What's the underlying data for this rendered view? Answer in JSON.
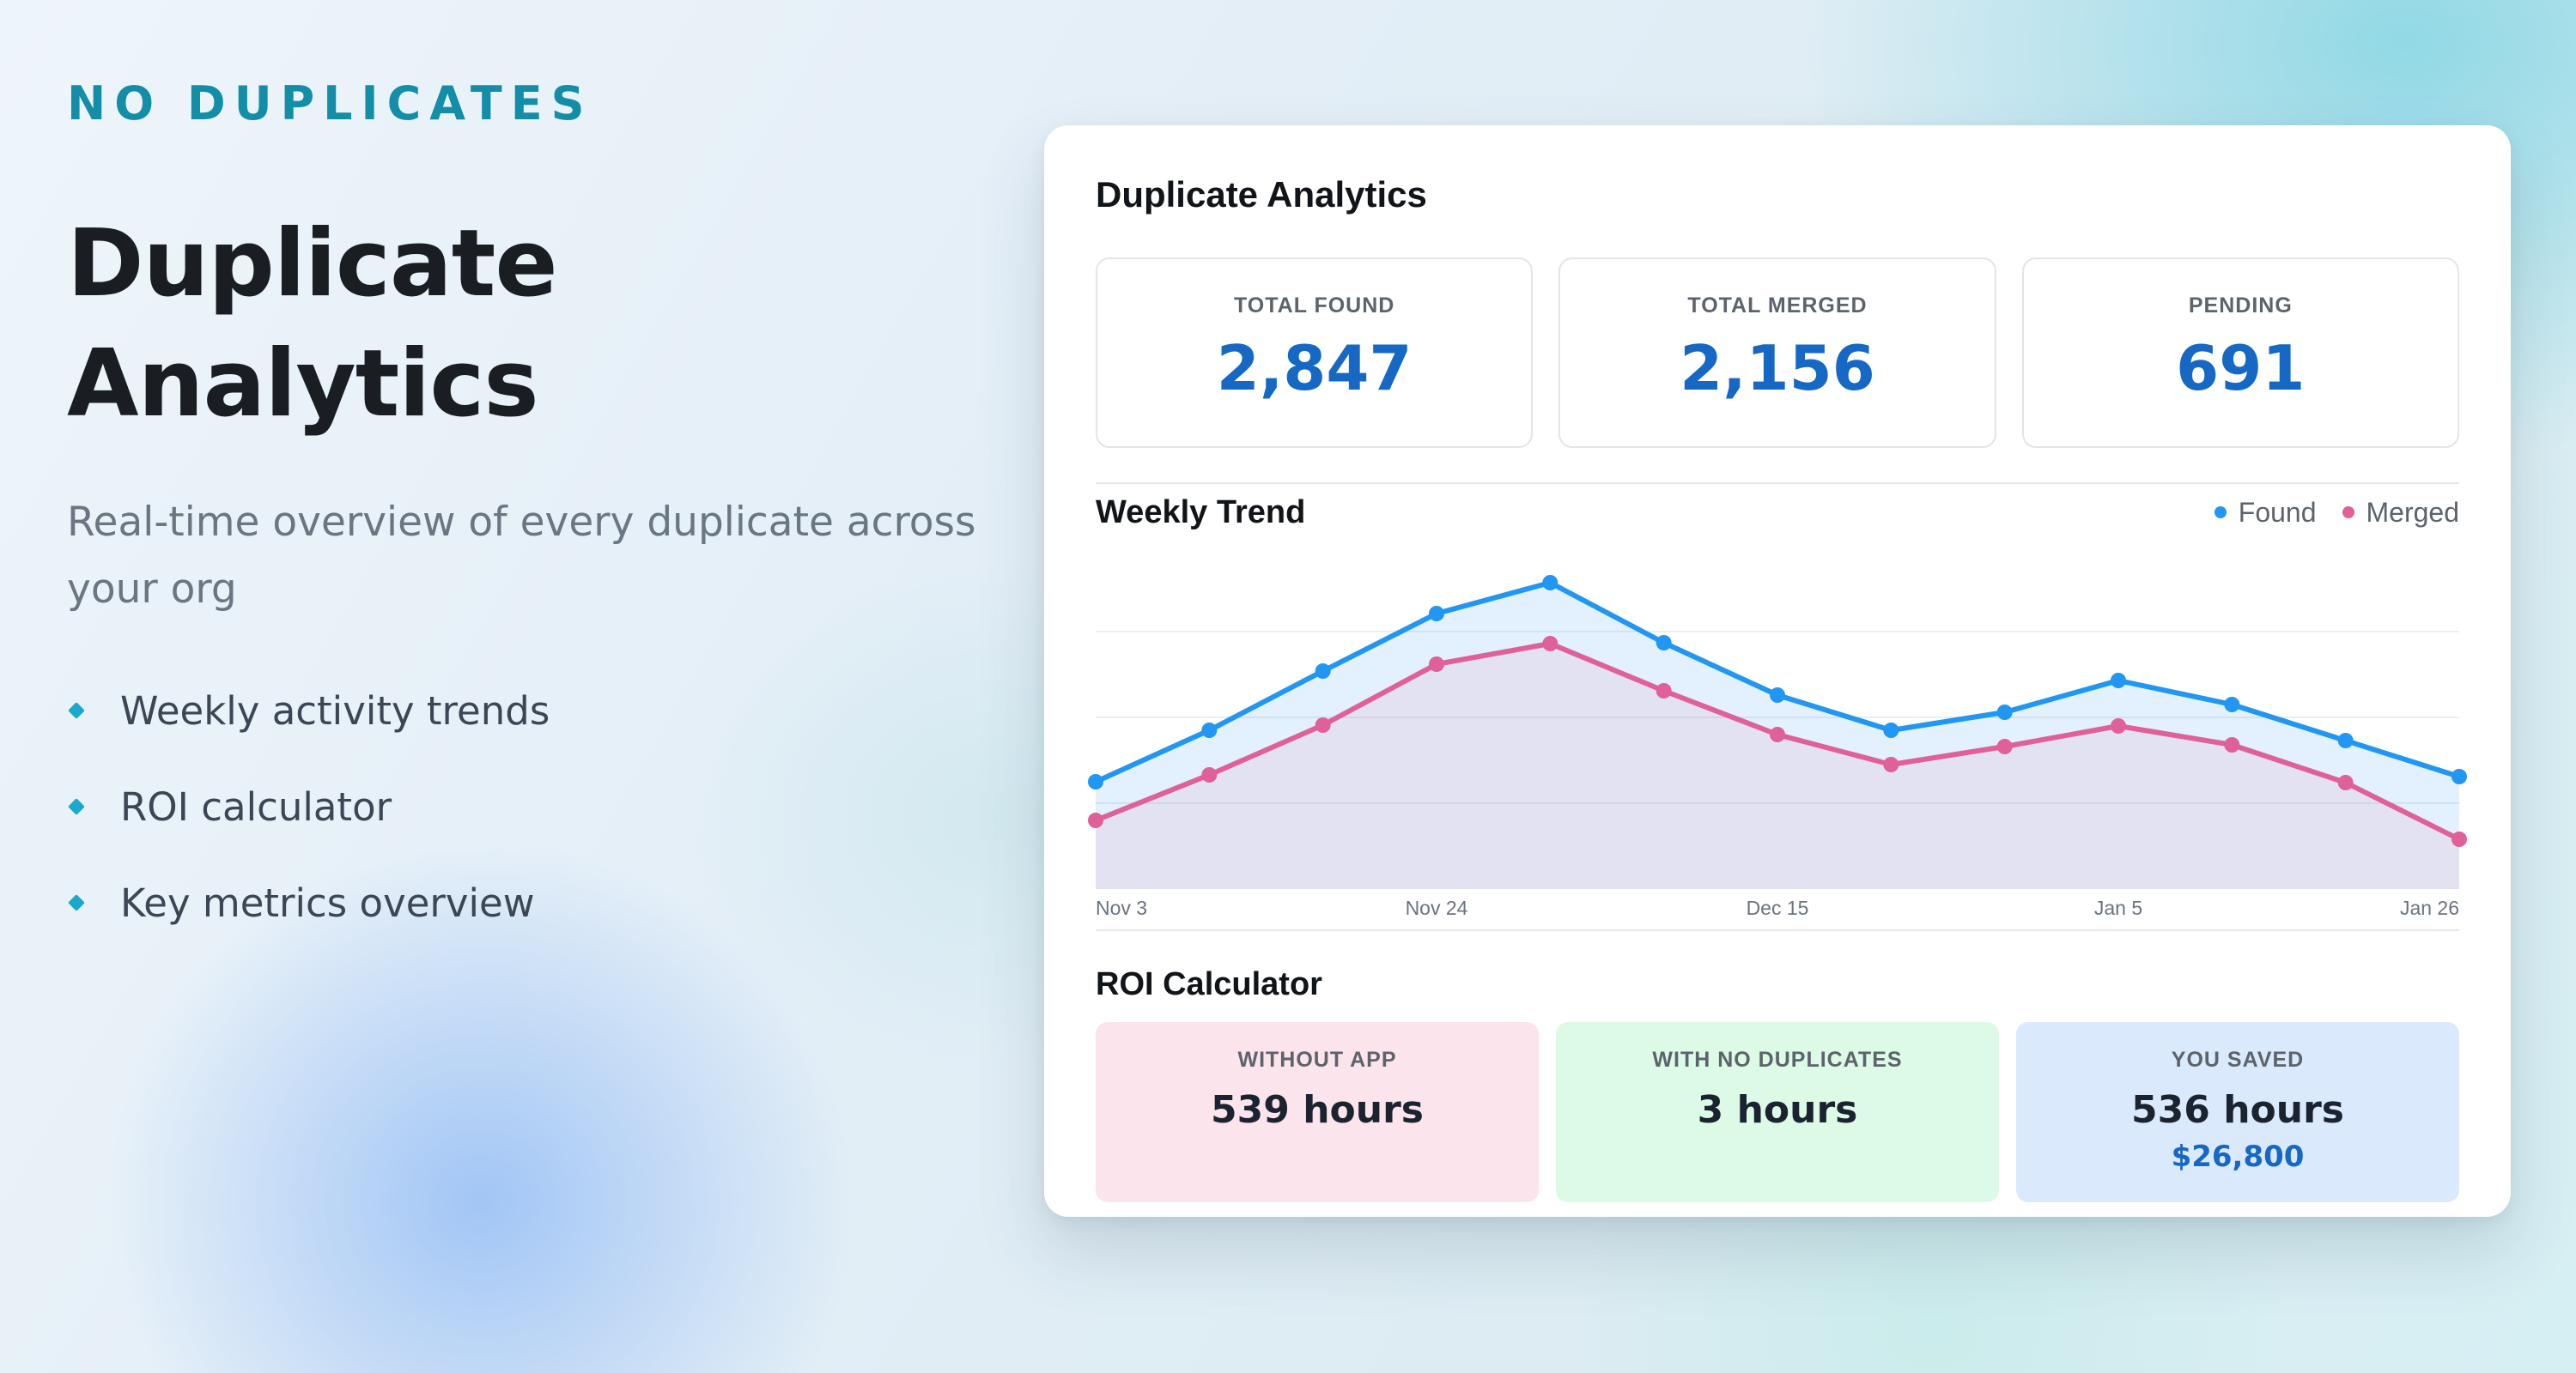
{
  "hero": {
    "eyebrow": "NO DUPLICATES",
    "title_line1": "Duplicate",
    "title_line2": "Analytics",
    "subtitle": "Real-time overview of every duplicate across your org",
    "features": [
      "Weekly activity trends",
      "ROI calculator",
      "Key metrics overview"
    ]
  },
  "card": {
    "title": "Duplicate Analytics",
    "stats": [
      {
        "label": "TOTAL FOUND",
        "value": "2,847"
      },
      {
        "label": "TOTAL MERGED",
        "value": "2,156"
      },
      {
        "label": "PENDING",
        "value": "691"
      }
    ],
    "trend_title": "Weekly Trend",
    "roi_title": "ROI Calculator",
    "roi": [
      {
        "label": "WITHOUT APP",
        "value": "539 hours",
        "bg": "#fce4ec"
      },
      {
        "label": "WITH NO DUPLICATES",
        "value": "3 hours",
        "bg": "#dcfae6"
      },
      {
        "label": "YOU SAVED",
        "value": "536 hours",
        "sub": "$26,800",
        "bg": "#dbe9fd"
      }
    ]
  },
  "colors": {
    "found": "#2196f3",
    "merged": "#e0609a",
    "accent": "#1668c5"
  },
  "chart_data": {
    "type": "line",
    "title": "Weekly Trend",
    "x": [
      "Nov 3",
      "Nov 10",
      "Nov 17",
      "Nov 24",
      "Dec 1",
      "Dec 8",
      "Dec 15",
      "Dec 22",
      "Dec 29",
      "Jan 5",
      "Jan 12",
      "Jan 19",
      "Jan 26"
    ],
    "tick_labels": [
      "Nov 3",
      "Nov 24",
      "Dec 15",
      "Jan 5",
      "Jan 26"
    ],
    "series": [
      {
        "name": "Found",
        "values": [
          125,
          185,
          254,
          321,
          357,
          287,
          226,
          185,
          206,
          243,
          215,
          173,
          131
        ]
      },
      {
        "name": "Merged",
        "values": [
          80,
          133,
          191,
          262,
          286,
          231,
          180,
          145,
          166,
          190,
          168,
          124,
          58
        ]
      }
    ],
    "ylim": [
      0,
      400
    ],
    "grid": true,
    "legend": "top-right",
    "xlabel": "",
    "ylabel": ""
  }
}
